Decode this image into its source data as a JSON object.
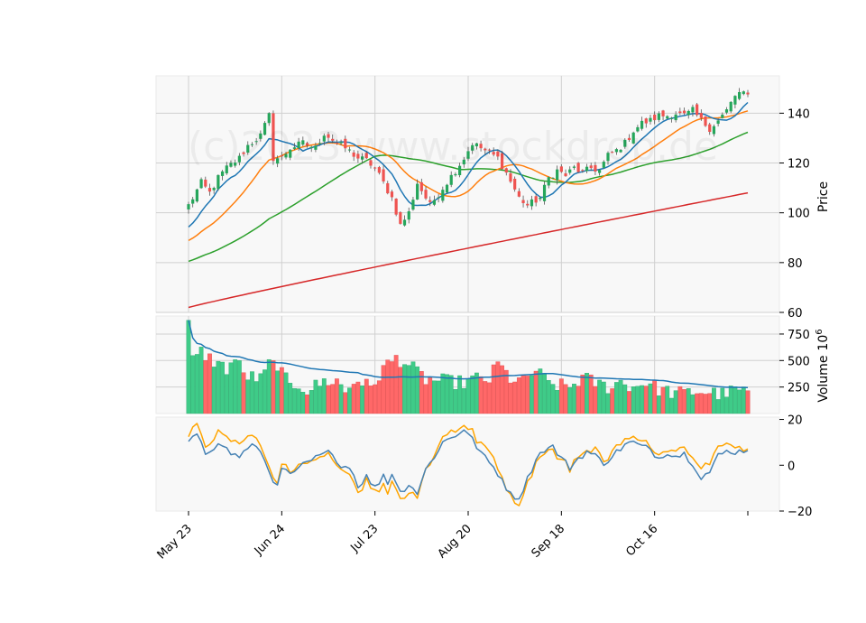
{
  "watermark": "(c)2023 www.stockdrop.de",
  "chart_data": {
    "type": "candlestick",
    "panels": {
      "price": {
        "ylabel": "Price",
        "ylim": [
          60,
          155
        ],
        "yticks": [
          60,
          80,
          100,
          120,
          140
        ],
        "grid": true
      },
      "volume": {
        "ylabel": "Volume  10⁶",
        "ylabel_main": "Volume",
        "ylabel_exp": "10",
        "ylabel_sup": "6",
        "ylim": [
          0,
          920
        ],
        "yticks": [
          250,
          500,
          750
        ],
        "grid": true
      },
      "oscillator": {
        "ylim": [
          -20,
          21
        ],
        "yticks": [
          -20,
          0,
          20
        ],
        "grid": false
      }
    },
    "xaxis": {
      "tick_labels": [
        "May 23",
        "Jun 24",
        "Jul 23",
        "Aug 20",
        "Sep 18",
        "Oct 16",
        ""
      ],
      "tick_index": [
        0,
        22,
        44,
        66,
        88,
        110,
        132
      ]
    },
    "colors": {
      "up": "#26a65b",
      "down": "#ef5350",
      "volume_up": "#3fcb88",
      "volume_down": "#ff6868",
      "ma_fast": "#1f77b4",
      "ma_mid": "#ff7f0e",
      "ma_slow": "#2ca02c",
      "ma_long": "#d62728",
      "volume_ma": "#1f77b4",
      "osc_main": "#4682b4",
      "osc_signal": "#ffa500"
    },
    "series": {
      "close_keypoints": [
        [
          0,
          103
        ],
        [
          3,
          112
        ],
        [
          5,
          108
        ],
        [
          7,
          114
        ],
        [
          9,
          118
        ],
        [
          12,
          122
        ],
        [
          14,
          127
        ],
        [
          17,
          131
        ],
        [
          19,
          139
        ],
        [
          20,
          122
        ],
        [
          22,
          122
        ],
        [
          24,
          126
        ],
        [
          27,
          128
        ],
        [
          30,
          126
        ],
        [
          32,
          132
        ],
        [
          35,
          128
        ],
        [
          37,
          126
        ],
        [
          40,
          122
        ],
        [
          42,
          121
        ],
        [
          44,
          118
        ],
        [
          46,
          112
        ],
        [
          48,
          106
        ],
        [
          50,
          95
        ],
        [
          52,
          100
        ],
        [
          54,
          112
        ],
        [
          57,
          103
        ],
        [
          60,
          110
        ],
        [
          63,
          117
        ],
        [
          65,
          122
        ],
        [
          67,
          128
        ],
        [
          70,
          125
        ],
        [
          73,
          122
        ],
        [
          75,
          116
        ],
        [
          78,
          106
        ],
        [
          80,
          103
        ],
        [
          83,
          106
        ],
        [
          85,
          114
        ],
        [
          87,
          117
        ],
        [
          89,
          115
        ],
        [
          91,
          118
        ],
        [
          93,
          116
        ],
        [
          95,
          118
        ],
        [
          97,
          117
        ],
        [
          99,
          123
        ],
        [
          101,
          125
        ],
        [
          103,
          128
        ],
        [
          105,
          133
        ],
        [
          107,
          136
        ],
        [
          109,
          137
        ],
        [
          111,
          139
        ],
        [
          113,
          139
        ],
        [
          115,
          140
        ],
        [
          117,
          139
        ],
        [
          119,
          141
        ],
        [
          121,
          137
        ],
        [
          123,
          134
        ],
        [
          125,
          137
        ],
        [
          127,
          141
        ],
        [
          129,
          147
        ],
        [
          130,
          148
        ],
        [
          132,
          147
        ]
      ],
      "volume_keypoints": [
        [
          0,
          880
        ],
        [
          1,
          500
        ],
        [
          3,
          580
        ],
        [
          5,
          520
        ],
        [
          9,
          420
        ],
        [
          11,
          520
        ],
        [
          13,
          370
        ],
        [
          17,
          320
        ],
        [
          19,
          460
        ],
        [
          21,
          470
        ],
        [
          22,
          380
        ],
        [
          24,
          250
        ],
        [
          26,
          280
        ],
        [
          28,
          220
        ],
        [
          32,
          300
        ],
        [
          35,
          310
        ],
        [
          37,
          210
        ],
        [
          40,
          330
        ],
        [
          43,
          230
        ],
        [
          46,
          430
        ],
        [
          49,
          520
        ],
        [
          51,
          490
        ],
        [
          53,
          420
        ],
        [
          56,
          320
        ],
        [
          59,
          310
        ],
        [
          62,
          300
        ],
        [
          65,
          290
        ],
        [
          68,
          330
        ],
        [
          71,
          320
        ],
        [
          73,
          470
        ],
        [
          76,
          330
        ],
        [
          79,
          300
        ],
        [
          82,
          410
        ],
        [
          85,
          280
        ],
        [
          88,
          260
        ],
        [
          90,
          250
        ],
        [
          93,
          340
        ],
        [
          96,
          290
        ],
        [
          99,
          250
        ],
        [
          102,
          300
        ],
        [
          105,
          250
        ],
        [
          108,
          300
        ],
        [
          111,
          230
        ],
        [
          114,
          200
        ],
        [
          117,
          190
        ],
        [
          120,
          210
        ],
        [
          123,
          200
        ],
        [
          126,
          180
        ],
        [
          129,
          220
        ],
        [
          132,
          210
        ]
      ],
      "osc_keypoints": [
        [
          0,
          9
        ],
        [
          2,
          14
        ],
        [
          3,
          11
        ],
        [
          4,
          6
        ],
        [
          6,
          8
        ],
        [
          8,
          9
        ],
        [
          10,
          5
        ],
        [
          12,
          4
        ],
        [
          14,
          7
        ],
        [
          16,
          9
        ],
        [
          18,
          2
        ],
        [
          21,
          -10
        ],
        [
          22,
          -2
        ],
        [
          25,
          -4
        ],
        [
          27,
          0
        ],
        [
          29,
          2
        ],
        [
          31,
          4
        ],
        [
          34,
          6
        ],
        [
          36,
          -1
        ],
        [
          38,
          0
        ],
        [
          40,
          -9
        ],
        [
          42,
          -5
        ],
        [
          44,
          -10
        ],
        [
          46,
          -4
        ],
        [
          47,
          -8
        ],
        [
          48,
          -3
        ],
        [
          50,
          -12
        ],
        [
          52,
          -8
        ],
        [
          54,
          -12
        ],
        [
          56,
          -2
        ],
        [
          58,
          4
        ],
        [
          60,
          10
        ],
        [
          63,
          13
        ],
        [
          65,
          16
        ],
        [
          67,
          11
        ],
        [
          70,
          3
        ],
        [
          72,
          -1
        ],
        [
          74,
          -6
        ],
        [
          76,
          -13
        ],
        [
          78,
          -14
        ],
        [
          80,
          -6
        ],
        [
          82,
          3
        ],
        [
          84,
          7
        ],
        [
          86,
          8
        ],
        [
          88,
          3
        ],
        [
          90,
          -1
        ],
        [
          92,
          3
        ],
        [
          94,
          6
        ],
        [
          96,
          4
        ],
        [
          98,
          1
        ],
        [
          100,
          4
        ],
        [
          103,
          9
        ],
        [
          105,
          10
        ],
        [
          107,
          8
        ],
        [
          109,
          7
        ],
        [
          111,
          3
        ],
        [
          113,
          6
        ],
        [
          115,
          4
        ],
        [
          117,
          5
        ],
        [
          119,
          1
        ],
        [
          121,
          -5
        ],
        [
          123,
          -3
        ],
        [
          125,
          4
        ],
        [
          127,
          6
        ],
        [
          130,
          6
        ],
        [
          132,
          7
        ]
      ],
      "osc_signal_offset_keypoints": [
        [
          0,
          3
        ],
        [
          10,
          6
        ],
        [
          20,
          2
        ],
        [
          30,
          -1
        ],
        [
          40,
          -2
        ],
        [
          50,
          -4
        ],
        [
          60,
          2
        ],
        [
          66,
          3
        ],
        [
          72,
          4
        ],
        [
          78,
          -2
        ],
        [
          86,
          -1
        ],
        [
          96,
          2
        ],
        [
          106,
          1
        ],
        [
          116,
          3
        ],
        [
          124,
          4
        ],
        [
          132,
          1
        ]
      ],
      "ma_long_range": [
        62,
        108
      ]
    }
  }
}
